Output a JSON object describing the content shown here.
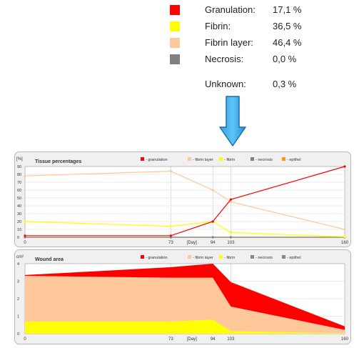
{
  "legend_top": [
    {
      "label": "Granulation:",
      "value": "17,1 %",
      "color": "#ff0000"
    },
    {
      "label": "Fibrin:",
      "value": "36,5 %",
      "color": "#ffff00"
    },
    {
      "label": "Fibrin layer:",
      "value": "46,4 %",
      "color": "#ffc89a"
    },
    {
      "label": "Necrosis:",
      "value": "0,0 %",
      "color": "#808080"
    },
    {
      "label": "Unknown:",
      "value": "0,3 %",
      "color": null
    }
  ],
  "chart_data": [
    {
      "type": "line",
      "title": "Tissue percentages",
      "ylabel": "[%]",
      "xlabel": "[Day]",
      "x": [
        0,
        73,
        94,
        103,
        160
      ],
      "xticks": [
        "0",
        "73",
        "94",
        "103",
        "160"
      ],
      "ylim": [
        0,
        90
      ],
      "yticks": [
        "0",
        "10",
        "20",
        "30",
        "40",
        "50",
        "60",
        "70",
        "80",
        "90"
      ],
      "legend": [
        "- granulation",
        "- fibrin layer",
        "- fibrin",
        "- necrosis",
        "- epithel"
      ],
      "series": [
        {
          "name": "- granulation",
          "color": "#ff0000",
          "values": [
            2,
            2,
            20,
            48,
            90
          ]
        },
        {
          "name": "- fibrin layer",
          "color": "#ffc89a",
          "values": [
            78,
            84,
            60,
            45,
            10
          ]
        },
        {
          "name": "- fibrin",
          "color": "#ffff00",
          "values": [
            20,
            14,
            20,
            6,
            0.5
          ]
        },
        {
          "name": "- necrosis",
          "color": "#808080",
          "values": [
            0,
            0,
            0,
            0,
            0
          ]
        },
        {
          "name": "- epithel",
          "color": "#ff9900",
          "values": [
            0,
            0,
            0,
            0,
            0
          ]
        }
      ]
    },
    {
      "type": "area",
      "title": "Wound area",
      "ylabel": "cm²",
      "xlabel": "[Day]",
      "x": [
        0,
        73,
        94,
        103,
        160
      ],
      "xticks": [
        "0",
        "73",
        "94",
        "103",
        "160"
      ],
      "ylim": [
        0,
        4
      ],
      "yticks": [
        "0",
        "1",
        "2",
        "3",
        "4"
      ],
      "legend": [
        "- granulation",
        "- fibrin layer",
        "- fibrin",
        "- necrosis",
        "- epithel"
      ],
      "series": [
        {
          "name": "- fibrin",
          "color": "#ffff00",
          "values": [
            0.7,
            0.7,
            0.8,
            0.15,
            0.02
          ]
        },
        {
          "name": "- fibrin layer",
          "color": "#ffc89a",
          "values": [
            2.6,
            2.5,
            2.4,
            1.4,
            0.2
          ]
        },
        {
          "name": "- granulation",
          "color": "#ff0000",
          "values": [
            0.05,
            0.6,
            0.8,
            1.4,
            0.2
          ]
        }
      ]
    }
  ]
}
